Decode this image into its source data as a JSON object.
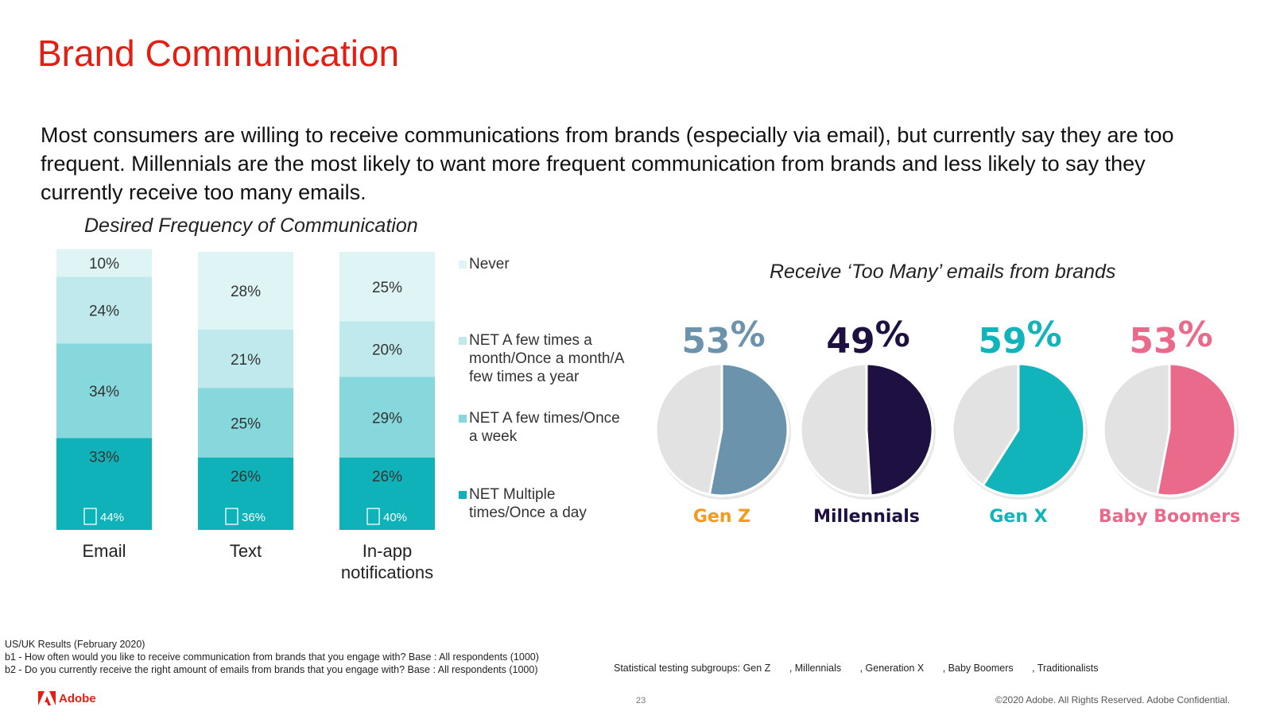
{
  "title": "Brand Communication",
  "summary": "Most consumers are willing to receive communications from brands (especially via email), but currently say they are too frequent.  Millennials are the most likely to want more frequent communication from brands and less likely to say they currently receive too many emails.",
  "colors": {
    "accent": "#e41e13",
    "never": "#def4f5",
    "few_month": "#bfe9ec",
    "few_week": "#86d8dc",
    "multiple_day": "#10b2b9",
    "pie_rest": "#e2e2e2"
  },
  "chart_data": [
    {
      "type": "bar",
      "stacked": true,
      "title": "Desired Frequency of Communication",
      "categories": [
        "Email",
        "Text",
        "In-app notifications"
      ],
      "category_lines": [
        [
          "Email"
        ],
        [
          "Text"
        ],
        [
          "In-app",
          "notifications"
        ]
      ],
      "series": [
        {
          "name": "NET Multiple times/Once a day",
          "legend_lines": [
            "NET Multiple",
            "times/Once a day"
          ],
          "values": [
            33,
            26,
            26
          ]
        },
        {
          "name": "NET A few times/Once a week",
          "legend_lines": [
            "NET A few times/Once",
            "a week"
          ],
          "values": [
            34,
            25,
            29
          ]
        },
        {
          "name": "NET A few times a month/Once a month/A few times a year",
          "legend_lines": [
            "NET A few times a",
            "month/Once a month/A",
            "few times a year"
          ],
          "values": [
            24,
            21,
            20
          ]
        },
        {
          "name": "Never",
          "legend_lines": [
            "Never"
          ],
          "values": [
            10,
            28,
            25
          ]
        }
      ],
      "net_labels": [
        "44%",
        "36%",
        "40%"
      ],
      "legend_position": "right",
      "ylim": [
        0,
        100
      ]
    },
    {
      "type": "pie",
      "title": "Receive ‘Too Many’ emails from brands",
      "groups": [
        {
          "name": "Gen Z",
          "value": 53,
          "label": "53",
          "color": "#6b93ab",
          "name_color": "#f39a1f"
        },
        {
          "name": "Millennials",
          "value": 49,
          "label": "49",
          "color": "#1e1040",
          "name_color": "#1e1040"
        },
        {
          "name": "Gen X",
          "value": 59,
          "label": "59",
          "color": "#12b4bc",
          "name_color": "#12b4bc"
        },
        {
          "name": "Baby Boomers",
          "value": 53,
          "label": "53",
          "color": "#e96a8b",
          "name_color": "#e96a8b"
        }
      ],
      "percent_symbol": "%"
    }
  ],
  "footnotes": [
    "US/UK Results (February 2020)",
    "b1 - How often would you like to receive communication from brands that you engage with? Base : All respondents (1000)",
    "b2 - Do you currently receive the right amount of emails from brands that you engage with? Base : All respondents (1000)"
  ],
  "stat_test": {
    "prefix": "Statistical testing subgroups: Gen Z",
    "items": [
      ", Millennials",
      ", Generation X",
      ", Baby Boomers",
      ", Traditionalists"
    ]
  },
  "brand_name": "Adobe",
  "page_number": "23",
  "copyright": "©2020 Adobe. All Rights Reserved. Adobe Confidential."
}
